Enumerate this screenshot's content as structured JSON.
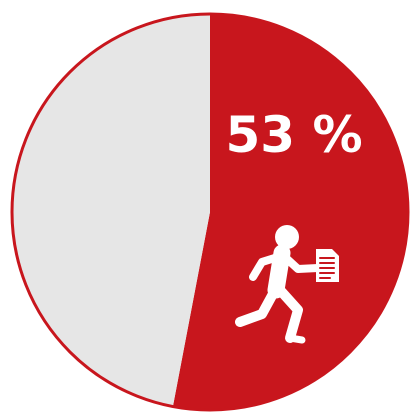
{
  "chart_data": {
    "type": "pie",
    "slices": [
      {
        "value": 53,
        "color": "#C8161D"
      },
      {
        "value": 47,
        "color": "#E6E6E6"
      }
    ],
    "labels": [
      {
        "text": "53 %"
      }
    ],
    "icon": "running-person-with-document-icon",
    "outline_color": "#C8161D"
  }
}
